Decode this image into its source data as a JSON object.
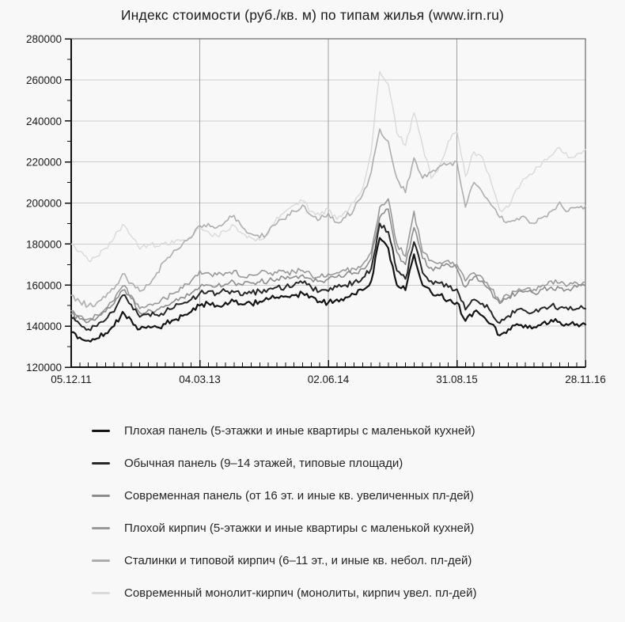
{
  "title": "Индекс стоимости (руб./кв. м) по типам жилья (www.irn.ru)",
  "chart_data": {
    "type": "line",
    "title": "Индекс стоимости (руб./кв. м) по типам жилья (www.irn.ru)",
    "xlabel": "",
    "ylabel": "",
    "ylim": [
      120000,
      280000
    ],
    "y_tick_step": 20000,
    "y_ticks": [
      120000,
      140000,
      160000,
      180000,
      200000,
      220000,
      240000,
      260000,
      280000
    ],
    "x_tick_labels": [
      "05.12.11",
      "04.03.13",
      "02.06.14",
      "31.08.15",
      "28.11.16"
    ],
    "x_minor_tick_interval": "monthly",
    "grid": {
      "horizontal": true,
      "vertical": true
    },
    "legend_position": "bottom",
    "series": [
      {
        "label": "Плохая панель (5-этажки и иные квартиры с маленькой кухней)",
        "color": "#141414",
        "width": 2.2,
        "values": [
          137000,
          134500,
          133000,
          134000,
          136500,
          140000,
          147000,
          143000,
          138500,
          140000,
          139500,
          141000,
          143000,
          145000,
          147000,
          150000,
          151000,
          150000,
          151500,
          152000,
          150500,
          151000,
          152000,
          153000,
          154000,
          154500,
          155000,
          156000,
          154500,
          152000,
          151500,
          153000,
          154000,
          155500,
          157500,
          162000,
          183000,
          178000,
          160000,
          157500,
          175000,
          160000,
          156500,
          155000,
          152500,
          151500,
          142500,
          147000,
          145000,
          141000,
          135500,
          138500,
          141000,
          140500,
          139500,
          141500,
          143000,
          142000,
          140500,
          141000,
          140800
        ]
      },
      {
        "label": "Обычная панель (9–14 этажей, типовые площади)",
        "color": "#262626",
        "width": 2.0,
        "values": [
          143500,
          141000,
          138500,
          140000,
          143000,
          147000,
          155000,
          150500,
          144500,
          146000,
          145500,
          147000,
          149000,
          151000,
          153000,
          156000,
          157000,
          156000,
          157000,
          156500,
          155000,
          156000,
          157000,
          158000,
          159000,
          159000,
          160000,
          161000,
          159000,
          157000,
          157000,
          159000,
          160000,
          161500,
          163500,
          168000,
          190000,
          186000,
          167000,
          163000,
          181000,
          166000,
          162000,
          161000,
          159000,
          158000,
          148000,
          153000,
          151000,
          147000,
          141500,
          145000,
          148000,
          147500,
          147000,
          149000,
          150000,
          149000,
          148000,
          148500,
          148500
        ]
      },
      {
        "label": "Современная панель (от 16 эт. и иные кв. увеличенных пл-дей)",
        "color": "#8c8c8c",
        "width": 1.6,
        "values": [
          146000,
          143500,
          142000,
          144000,
          147000,
          151000,
          157500,
          153500,
          146500,
          148000,
          148000,
          150000,
          152000,
          154000,
          156000,
          159000,
          160000,
          159500,
          160500,
          161500,
          160000,
          161000,
          161500,
          162000,
          163000,
          163000,
          164000,
          165000,
          163000,
          162000,
          163000,
          164000,
          165000,
          166000,
          168000,
          173000,
          193000,
          197000,
          176000,
          170000,
          188000,
          173000,
          168500,
          168000,
          170000,
          168000,
          159000,
          164000,
          162000,
          157000,
          151000,
          154000,
          156000,
          157000,
          156000,
          158000,
          159000,
          158500,
          158000,
          159000,
          159500
        ]
      },
      {
        "label": "Плохой кирпич (5-этажки и иные квартиры с маленькой кухней)",
        "color": "#989898",
        "width": 1.6,
        "values": [
          147500,
          145000,
          143500,
          145500,
          148500,
          152500,
          159500,
          155000,
          148500,
          150500,
          151000,
          153500,
          156000,
          158500,
          162000,
          167000,
          166000,
          165000,
          166000,
          167000,
          164000,
          165000,
          166000,
          165500,
          166000,
          166000,
          166500,
          167000,
          165000,
          164000,
          165500,
          166000,
          167000,
          168000,
          170000,
          176000,
          198000,
          202000,
          180000,
          174000,
          196000,
          176000,
          172000,
          171000,
          172000,
          170000,
          162000,
          166000,
          163500,
          158000,
          152000,
          155000,
          157000,
          158000,
          158000,
          160000,
          162000,
          161000,
          160000,
          161000,
          161500
        ]
      },
      {
        "label": "Сталинки и типовой кирпич (6–11 эт., и иные кв. небол. пл-дей)",
        "color": "#adadad",
        "width": 1.6,
        "values": [
          155000,
          152000,
          150000,
          151500,
          154000,
          158000,
          165500,
          161000,
          157000,
          160000,
          166000,
          172000,
          177000,
          180000,
          183000,
          189000,
          190000,
          188000,
          191000,
          194000,
          188000,
          185000,
          183000,
          186000,
          190000,
          192000,
          196000,
          199000,
          194000,
          192000,
          195000,
          190500,
          193000,
          197000,
          204000,
          215000,
          236000,
          230000,
          212000,
          205000,
          222000,
          212000,
          215000,
          218000,
          219000,
          220000,
          198000,
          210000,
          205000,
          199000,
          193000,
          191000,
          192500,
          193000,
          190000,
          193000,
          196000,
          200500,
          196000,
          198000,
          198500
        ]
      },
      {
        "label": "Современный монолит-кирпич (монолиты, кирпич увел. пл-дей)",
        "color": "#d9d9d9",
        "width": 1.4,
        "values": [
          180000,
          176500,
          172000,
          174000,
          178000,
          183000,
          189500,
          184000,
          177500,
          180000,
          179000,
          181000,
          180500,
          182000,
          183500,
          187500,
          186000,
          184000,
          186000,
          189000,
          185000,
          183000,
          182000,
          185000,
          193000,
          196000,
          199000,
          201000,
          196000,
          194000,
          197000,
          192000,
          196000,
          200000,
          207000,
          225000,
          264000,
          258000,
          234000,
          228000,
          244000,
          228000,
          212000,
          218000,
          230000,
          235000,
          213000,
          225000,
          222000,
          210000,
          196500,
          198000,
          207000,
          212000,
          215000,
          220000,
          223000,
          227000,
          222000,
          224000,
          226000
        ]
      }
    ]
  },
  "style": {
    "background": "#f8f8f8",
    "axis_color": "#111111",
    "border_color": "#4a4a4a",
    "h_grid_color": "#cbcbcb",
    "v_grid_color": "#a0a0a0",
    "tick_label_color": "#1a1a1a"
  }
}
